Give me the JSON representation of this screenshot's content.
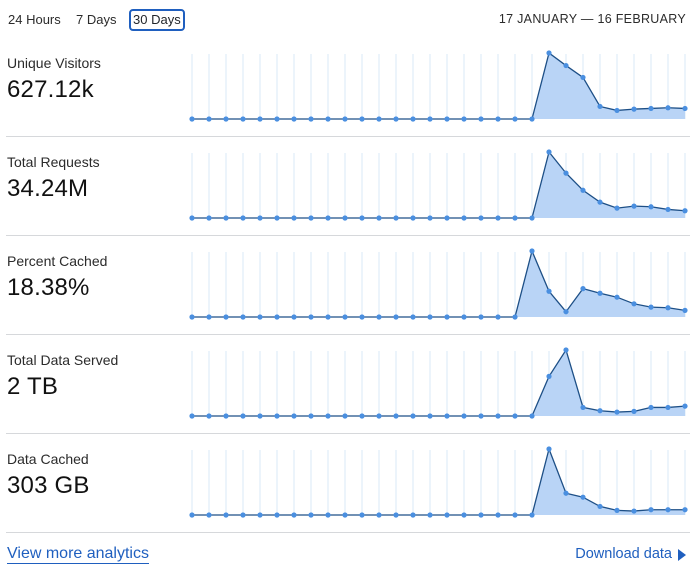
{
  "range_tabs": [
    {
      "label": "24 Hours",
      "active": false
    },
    {
      "label": "7 Days",
      "active": false
    },
    {
      "label": "30 Days",
      "active": true
    }
  ],
  "date_range": "17 JANUARY — 16 FEBRUARY",
  "colors": {
    "accent": "#1f5fbf",
    "line": "#1d4f86",
    "point": "#4a8fe0",
    "area": "#b9d4f6",
    "gridline": "#d9e8f7"
  },
  "metrics": [
    {
      "label": "Unique Visitors",
      "value": "627.12k",
      "series": [
        0,
        0,
        0,
        0,
        0,
        0,
        0,
        0,
        0,
        0,
        0,
        0,
        0,
        0,
        0,
        0,
        0,
        0,
        0,
        0,
        0,
        1.0,
        0.81,
        0.63,
        0.19,
        0.13,
        0.15,
        0.16,
        0.17,
        0.16
      ]
    },
    {
      "label": "Total Requests",
      "value": "34.24M",
      "series": [
        0,
        0,
        0,
        0,
        0,
        0,
        0,
        0,
        0,
        0,
        0,
        0,
        0,
        0,
        0,
        0,
        0,
        0,
        0,
        0,
        0,
        1.0,
        0.68,
        0.42,
        0.24,
        0.15,
        0.18,
        0.17,
        0.13,
        0.11
      ]
    },
    {
      "label": "Percent Cached",
      "value": "18.38%",
      "series": [
        0,
        0,
        0,
        0,
        0,
        0,
        0,
        0,
        0,
        0,
        0,
        0,
        0,
        0,
        0,
        0,
        0,
        0,
        0,
        0,
        1.0,
        0.39,
        0.08,
        0.43,
        0.36,
        0.3,
        0.2,
        0.15,
        0.14,
        0.1
      ]
    },
    {
      "label": "Total Data Served",
      "value": "2 TB",
      "series": [
        0,
        0,
        0,
        0,
        0,
        0,
        0,
        0,
        0,
        0,
        0,
        0,
        0,
        0,
        0,
        0,
        0,
        0,
        0,
        0,
        0,
        0.6,
        1.0,
        0.13,
        0.08,
        0.06,
        0.07,
        0.13,
        0.13,
        0.15
      ]
    },
    {
      "label": "Data Cached",
      "value": "303 GB",
      "series": [
        0,
        0,
        0,
        0,
        0,
        0,
        0,
        0,
        0,
        0,
        0,
        0,
        0,
        0,
        0,
        0,
        0,
        0,
        0,
        0,
        0,
        1.0,
        0.33,
        0.27,
        0.13,
        0.07,
        0.06,
        0.08,
        0.08,
        0.08
      ]
    }
  ],
  "footer": {
    "more_link": "View more analytics",
    "download_label": "Download data",
    "download_icon": "triangle-right-icon"
  }
}
